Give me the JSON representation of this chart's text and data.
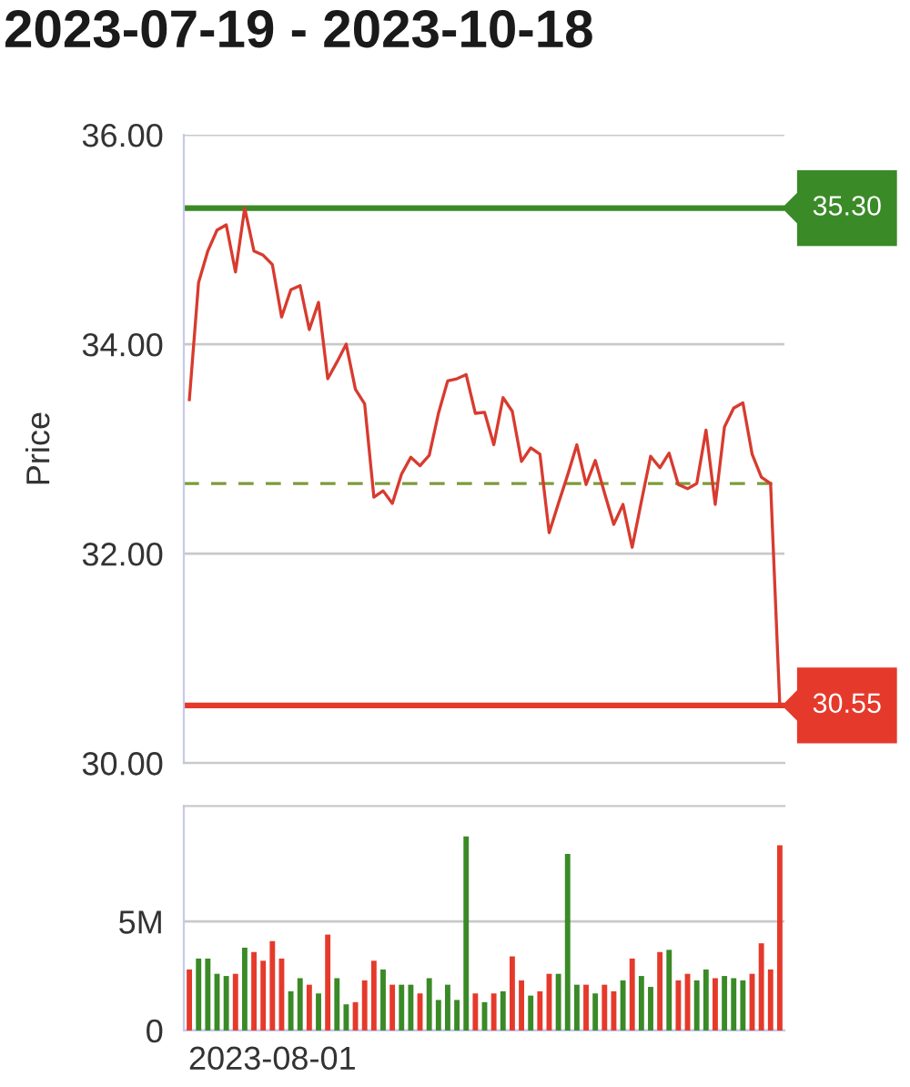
{
  "chart_data": [
    {
      "type": "line",
      "title": "2023-07-19 - 2023-10-18",
      "ylabel": "Price",
      "categories": [
        null,
        null,
        null,
        null,
        null,
        null,
        null,
        null,
        null,
        null,
        null,
        null,
        null,
        null,
        null,
        null,
        null,
        null,
        null,
        null,
        null,
        null,
        null,
        null,
        null,
        null,
        null,
        null,
        null,
        null,
        null,
        null,
        null,
        null,
        null,
        null,
        null,
        null,
        null,
        null,
        null,
        null,
        null,
        null,
        null,
        null,
        null,
        null,
        null,
        null,
        null,
        null,
        null,
        null,
        null,
        null,
        null,
        null,
        null,
        null,
        null,
        null,
        null,
        null,
        null
      ],
      "series": [
        {
          "color": "#d83b2f",
          "values": [
            33.47,
            34.59,
            34.89,
            35.09,
            35.14,
            34.69,
            35.3,
            34.89,
            34.85,
            34.76,
            34.26,
            34.52,
            34.56,
            34.14,
            34.4,
            33.67,
            33.83,
            34.0,
            33.57,
            33.43,
            32.54,
            32.6,
            32.48,
            32.76,
            32.92,
            32.84,
            32.94,
            33.34,
            33.65,
            33.67,
            33.71,
            33.34,
            33.35,
            33.04,
            33.49,
            33.36,
            32.88,
            33.01,
            32.95,
            32.2,
            32.48,
            32.75,
            33.04,
            32.66,
            32.89,
            32.58,
            32.28,
            32.47,
            32.06,
            32.5,
            32.93,
            32.82,
            32.96,
            32.66,
            32.62,
            32.67,
            33.18,
            32.47,
            33.21,
            33.39,
            33.44,
            32.95,
            32.73,
            32.67,
            30.55
          ]
        }
      ],
      "ylim": [
        30,
        36
      ],
      "yticks": [
        {
          "value": 30,
          "label": "30.00"
        },
        {
          "value": 32,
          "label": "32.00"
        },
        {
          "value": 34,
          "label": "34.00"
        },
        {
          "value": 36,
          "label": "36.00"
        }
      ],
      "grid": "y",
      "tick_labels": "y",
      "marker": "none",
      "line_style": "solid",
      "ref_lines": [
        {
          "axis": "y",
          "value": 35.3,
          "label": "35.30",
          "color": "#3a8a27"
        },
        {
          "axis": "y",
          "value": 30.55,
          "label": "30.55",
          "color": "#e53a2b"
        },
        {
          "axis": "y",
          "value": 32.67,
          "color": "#7d9a3c",
          "line_style": "dashed"
        }
      ]
    },
    {
      "type": "bar",
      "categories": [
        null,
        null,
        null,
        null,
        null,
        null,
        null,
        null,
        null,
        "2023-08-01",
        null,
        null,
        null,
        null,
        null,
        null,
        null,
        null,
        null,
        null,
        null,
        null,
        null,
        null,
        null,
        null,
        null,
        null,
        null,
        null,
        null,
        null,
        null,
        null,
        null,
        null,
        null,
        null,
        null,
        null,
        null,
        null,
        null,
        null,
        null,
        null,
        null,
        null,
        null,
        null,
        null,
        null,
        null,
        null,
        null,
        null,
        null,
        null,
        null,
        null,
        null,
        null,
        null,
        null,
        null
      ],
      "values": [
        2.8,
        3.3,
        3.3,
        2.6,
        2.5,
        2.6,
        3.8,
        3.6,
        3.2,
        4.1,
        3.3,
        1.8,
        2.4,
        2.1,
        1.7,
        4.4,
        2.4,
        1.2,
        1.3,
        2.3,
        3.2,
        2.8,
        2.1,
        2.1,
        2.1,
        1.7,
        2.4,
        1.4,
        2.1,
        1.4,
        8.9,
        1.7,
        1.3,
        1.7,
        1.8,
        3.4,
        2.3,
        1.6,
        1.8,
        2.6,
        2.6,
        8.1,
        2.1,
        2.1,
        1.7,
        2.1,
        1.8,
        2.3,
        3.3,
        2.5,
        2.0,
        3.6,
        3.7,
        2.3,
        2.6,
        2.3,
        2.8,
        2.4,
        2.5,
        2.4,
        2.3,
        2.6,
        4.0,
        2.8,
        8.5
      ],
      "colors": [
        "#e53a2b",
        "#3a8a27",
        "#3a8a27",
        "#3a8a27",
        "#3a8a27",
        "#e53a2b",
        "#3a8a27",
        "#e53a2b",
        "#e53a2b",
        "#e53a2b",
        "#e53a2b",
        "#3a8a27",
        "#3a8a27",
        "#e53a2b",
        "#3a8a27",
        "#e53a2b",
        "#3a8a27",
        "#3a8a27",
        "#e53a2b",
        "#e53a2b",
        "#e53a2b",
        "#3a8a27",
        "#e53a2b",
        "#3a8a27",
        "#3a8a27",
        "#e53a2b",
        "#3a8a27",
        "#3a8a27",
        "#3a8a27",
        "#3a8a27",
        "#3a8a27",
        "#e53a2b",
        "#3a8a27",
        "#e53a2b",
        "#3a8a27",
        "#e53a2b",
        "#e53a2b",
        "#3a8a27",
        "#e53a2b",
        "#e53a2b",
        "#3a8a27",
        "#3a8a27",
        "#3a8a27",
        "#e53a2b",
        "#3a8a27",
        "#e53a2b",
        "#e53a2b",
        "#3a8a27",
        "#e53a2b",
        "#3a8a27",
        "#3a8a27",
        "#e53a2b",
        "#3a8a27",
        "#e53a2b",
        "#e53a2b",
        "#3a8a27",
        "#3a8a27",
        "#e53a2b",
        "#3a8a27",
        "#3a8a27",
        "#3a8a27",
        "#e53a2b",
        "#e53a2b",
        "#e53a2b",
        "#e53a2b"
      ],
      "ylim": [
        0,
        10.3
      ],
      "yticks": [
        0,
        {
          "value": 5,
          "label": "5M"
        }
      ],
      "grid": "y"
    }
  ]
}
